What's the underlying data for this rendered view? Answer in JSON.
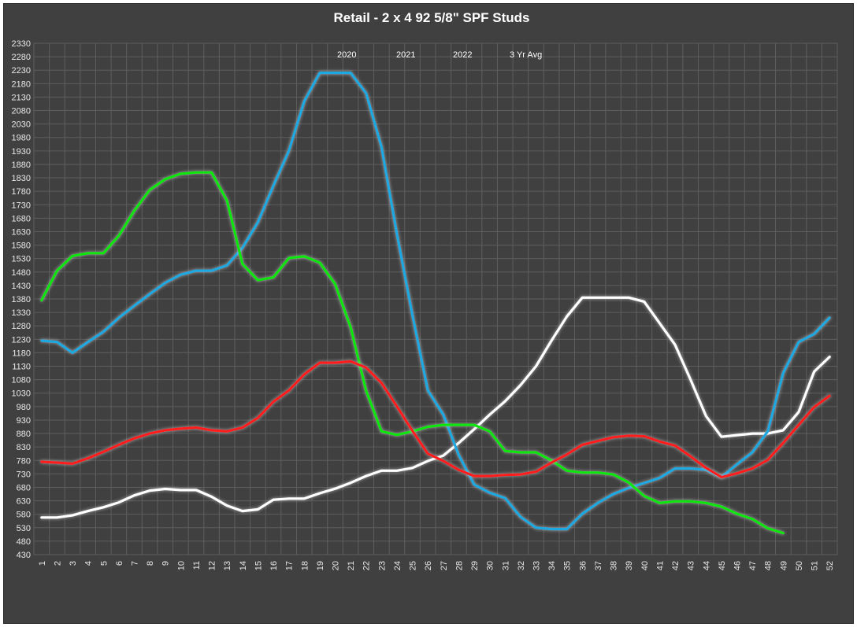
{
  "chart_data": {
    "type": "line",
    "title": "Retail - 2 x 4  92 5/8\" SPF Studs",
    "xlabel": "",
    "ylabel": "",
    "x": [
      "1",
      "2",
      "3",
      "4",
      "5",
      "6",
      "7",
      "8",
      "9",
      "10",
      "11",
      "12",
      "13",
      "14",
      "15",
      "16",
      "17",
      "18",
      "19",
      "20",
      "21",
      "22",
      "23",
      "24",
      "25",
      "26",
      "27",
      "28",
      "29",
      "30",
      "31",
      "32",
      "33",
      "34",
      "35",
      "36",
      "37",
      "38",
      "39",
      "40",
      "41",
      "42",
      "43",
      "44",
      "45",
      "46",
      "47",
      "48",
      "49",
      "50",
      "51",
      "52"
    ],
    "ylim": [
      430,
      2330
    ],
    "yticks": [
      430,
      480,
      530,
      580,
      630,
      680,
      730,
      780,
      830,
      880,
      930,
      980,
      1030,
      1080,
      1130,
      1180,
      1230,
      1280,
      1330,
      1380,
      1430,
      1480,
      1530,
      1580,
      1630,
      1680,
      1730,
      1780,
      1830,
      1880,
      1930,
      1980,
      2030,
      2080,
      2130,
      2180,
      2230,
      2280,
      2330
    ],
    "grid": true,
    "legend_position": "top-center",
    "series": [
      {
        "name": "2020",
        "color": "#ffffff",
        "values": [
          568,
          568,
          576,
          592,
          606,
          624,
          650,
          668,
          674,
          670,
          670,
          645,
          612,
          592,
          598,
          634,
          638,
          638,
          658,
          675,
          697,
          722,
          742,
          742,
          752,
          778,
          798,
          845,
          896,
          950,
          1000,
          1060,
          1130,
          1225,
          1315,
          1385,
          1385,
          1385,
          1385,
          1370,
          1290,
          1210,
          1080,
          945,
          868,
          874,
          880,
          880,
          892,
          960,
          1110,
          1165
        ]
      },
      {
        "name": "2021",
        "color": "#1fa8e0",
        "values": [
          1225,
          1220,
          1180,
          1220,
          1258,
          1310,
          1355,
          1398,
          1440,
          1470,
          1485,
          1485,
          1505,
          1570,
          1665,
          1800,
          1930,
          2115,
          2220,
          2220,
          2220,
          2145,
          1945,
          1620,
          1320,
          1040,
          950,
          800,
          690,
          660,
          640,
          570,
          530,
          525,
          525,
          582,
          622,
          655,
          678,
          696,
          715,
          750,
          750,
          745,
          718,
          765,
          810,
          888,
          1105,
          1220,
          1250,
          1310
        ]
      },
      {
        "name": "2022",
        "color": "#11e611",
        "values": [
          1375,
          1485,
          1540,
          1550,
          1550,
          1615,
          1708,
          1785,
          1825,
          1845,
          1850,
          1850,
          1745,
          1510,
          1450,
          1460,
          1532,
          1538,
          1515,
          1435,
          1275,
          1040,
          888,
          875,
          888,
          905,
          912,
          912,
          912,
          888,
          815,
          810,
          810,
          780,
          742,
          735,
          735,
          728,
          698,
          648,
          622,
          628,
          628,
          622,
          608,
          582,
          562,
          528,
          510,
          null,
          null,
          null
        ]
      },
      {
        "name": "3 Yr Avg",
        "color": "#ff1a1a",
        "values": [
          775,
          772,
          768,
          788,
          812,
          838,
          862,
          880,
          892,
          898,
          902,
          892,
          888,
          902,
          938,
          998,
          1040,
          1100,
          1143,
          1143,
          1148,
          1125,
          1068,
          980,
          890,
          805,
          778,
          745,
          722,
          722,
          726,
          728,
          738,
          772,
          802,
          838,
          852,
          866,
          872,
          870,
          850,
          835,
          795,
          752,
          718,
          732,
          750,
          782,
          845,
          912,
          978,
          1020
        ]
      }
    ]
  }
}
